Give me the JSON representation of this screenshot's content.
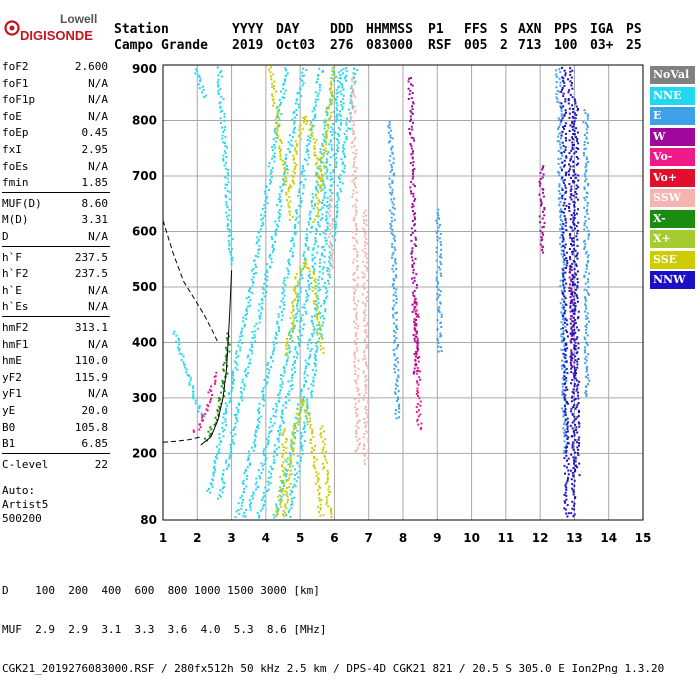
{
  "logo": {
    "line1": "Lowell",
    "line2": "DIGISONDE"
  },
  "header": {
    "labels": [
      "Station",
      "YYYY",
      "DAY",
      "DDD",
      "HHMMSS",
      "P1",
      "FFS",
      "S",
      "AXN",
      "PPS",
      "IGA",
      "PS"
    ],
    "values": [
      "Campo Grande",
      "2019",
      "Oct03",
      "276",
      "083000",
      "RSF",
      "005",
      "2",
      "713",
      "100",
      "03+",
      "25"
    ]
  },
  "params": [
    {
      "name": "foF2",
      "value": "2.600"
    },
    {
      "name": "foF1",
      "value": "N/A"
    },
    {
      "name": "foF1p",
      "value": "N/A"
    },
    {
      "name": "foE",
      "value": "N/A"
    },
    {
      "name": "foEp",
      "value": "0.45"
    },
    {
      "name": "fxI",
      "value": "2.95"
    },
    {
      "name": "foEs",
      "value": "N/A"
    },
    {
      "name": "fmin",
      "value": "1.85"
    },
    {
      "name": "MUF(D)",
      "value": "8.60"
    },
    {
      "name": "M(D)",
      "value": "3.31"
    },
    {
      "name": "D",
      "value": "N/A"
    },
    {
      "name": "h`F",
      "value": "237.5"
    },
    {
      "name": "h`F2",
      "value": "237.5"
    },
    {
      "name": "h`E",
      "value": "N/A"
    },
    {
      "name": "h`Es",
      "value": "N/A"
    },
    {
      "name": "hmF2",
      "value": "313.1"
    },
    {
      "name": "hmF1",
      "value": "N/A"
    },
    {
      "name": "hmE",
      "value": "110.0"
    },
    {
      "name": "yF2",
      "value": "115.9"
    },
    {
      "name": "yF1",
      "value": "N/A"
    },
    {
      "name": "yE",
      "value": "20.0"
    },
    {
      "name": "B0",
      "value": "105.8"
    },
    {
      "name": "B1",
      "value": "6.85"
    },
    {
      "name": "C-level",
      "value": "22"
    }
  ],
  "auto": {
    "line1": "Auto:",
    "line2": "Artist5",
    "line3": "500200"
  },
  "legend": [
    {
      "label": "NoVal",
      "color": "#808080"
    },
    {
      "label": "NNE",
      "color": "#22d8f0"
    },
    {
      "label": "E",
      "color": "#3ea0e8"
    },
    {
      "label": "W",
      "color": "#a0089c"
    },
    {
      "label": "Vo-",
      "color": "#f01a88"
    },
    {
      "label": "Vo+",
      "color": "#e0102c"
    },
    {
      "label": "SSW",
      "color": "#f4b4b0"
    },
    {
      "label": "X-",
      "color": "#1a8c10"
    },
    {
      "label": "X+",
      "color": "#a4cc30"
    },
    {
      "label": "SSE",
      "color": "#cccc00"
    },
    {
      "label": "NNW",
      "color": "#1c10c4"
    }
  ],
  "footer": {
    "line1": "D    100  200  400  600  800 1000 1500 3000 [km]",
    "line2": "MUF  2.9  2.9  3.1  3.3  3.6  4.0  5.3  8.6 [MHz]",
    "line3": "CGK21_2019276083000.RSF / 280fx512h 50 kHz 2.5 km / DPS-4D CGK21 821 / 20.5 S 305.0 E Ion2Png 1.3.20"
  },
  "chart_data": {
    "type": "scatter",
    "xlim": [
      1,
      15
    ],
    "ylim": [
      80,
      900
    ],
    "xticks": [
      1,
      2,
      3,
      4,
      5,
      6,
      7,
      8,
      9,
      10,
      11,
      12,
      13,
      14,
      15
    ],
    "yticks": [
      80,
      200,
      300,
      400,
      500,
      600,
      700,
      800,
      900
    ],
    "grid": true,
    "legend_position": "right",
    "series": [
      {
        "name": "NNE",
        "color": "#22d8f0",
        "traces": [
          {
            "x": [
              1.9,
              2.0,
              2.1,
              2.2
            ],
            "y": [
              900,
              880,
              860,
              840
            ]
          },
          {
            "x": [
              2.3,
              2.6,
              3.0,
              3.6,
              4.6
            ],
            "y": [
              130,
              210,
              330,
              520,
              900
            ]
          },
          {
            "x": [
              2.6,
              2.9,
              3.3,
              4.0,
              5.1
            ],
            "y": [
              120,
              200,
              320,
              520,
              900
            ]
          },
          {
            "x": [
              3.1,
              3.3,
              3.7,
              4.4,
              5.6
            ],
            "y": [
              80,
              130,
              250,
              450,
              900
            ]
          },
          {
            "x": [
              3.3,
              3.6,
              4.1,
              4.8,
              6.0
            ],
            "y": [
              80,
              120,
              240,
              440,
              900
            ]
          },
          {
            "x": [
              3.7,
              4.1,
              4.7,
              5.4,
              6.2
            ],
            "y": [
              80,
              160,
              330,
              560,
              900
            ]
          },
          {
            "x": [
              4.2,
              4.6,
              5.1,
              5.6,
              6.3
            ],
            "y": [
              80,
              170,
              330,
              540,
              900
            ]
          },
          {
            "x": [
              4.6,
              5.0,
              5.5,
              6.0,
              6.6
            ],
            "y": [
              80,
              210,
              400,
              620,
              900
            ]
          },
          {
            "x": [
              1.3,
              1.6,
              1.9,
              2.2
            ],
            "y": [
              420,
              360,
              300,
              260
            ]
          },
          {
            "x": [
              2.6,
              2.7,
              2.8,
              2.9,
              3.0
            ],
            "y": [
              900,
              820,
              720,
              620,
              540
            ]
          }
        ]
      },
      {
        "name": "SSE",
        "color": "#cccc00",
        "traces": [
          {
            "x": [
              4.5,
              4.8,
              5.05,
              5.3,
              5.6
            ],
            "y": [
              80,
              240,
              300,
              240,
              80
            ]
          },
          {
            "x": [
              4.6,
              4.9,
              5.1,
              5.35,
              5.6
            ],
            "y": [
              380,
              520,
              550,
              520,
              380
            ]
          },
          {
            "x": [
              4.7,
              4.95,
              5.1,
              5.35,
              5.6
            ],
            "y": [
              680,
              780,
              810,
              780,
              680
            ]
          },
          {
            "x": [
              4.1,
              4.4,
              4.75
            ],
            "y": [
              900,
              760,
              620
            ]
          },
          {
            "x": [
              5.4,
              5.7,
              6.0
            ],
            "y": [
              620,
              760,
              900
            ]
          },
          {
            "x": [
              4.3,
              4.45,
              4.55
            ],
            "y": [
              80,
              150,
              250
            ]
          },
          {
            "x": [
              5.6,
              5.75,
              5.85
            ],
            "y": [
              250,
              150,
              80
            ]
          }
        ]
      },
      {
        "name": "X-",
        "color": "#1a8c10",
        "traces": [
          {
            "x": [
              2.2,
              2.4,
              2.6,
              2.75,
              2.9
            ],
            "y": [
              225,
              245,
              280,
              330,
              420
            ]
          }
        ]
      },
      {
        "name": "Vo-",
        "color": "#f01a88",
        "traces": [
          {
            "x": [
              1.9,
              2.1,
              2.3,
              2.5
            ],
            "y": [
              240,
              255,
              290,
              350
            ]
          },
          {
            "x": [
              8.35,
              8.4,
              8.45
            ],
            "y": [
              480,
              360,
              240
            ]
          }
        ]
      },
      {
        "name": "SSW",
        "color": "#f4b4b0",
        "traces": [
          {
            "x": [
              6.5,
              6.55,
              6.6,
              6.65
            ],
            "y": [
              880,
              700,
              480,
              200
            ]
          },
          {
            "x": [
              6.85,
              6.9
            ],
            "y": [
              640,
              180
            ]
          },
          {
            "x": [
              5.85,
              5.9
            ],
            "y": [
              660,
              520
            ]
          }
        ]
      },
      {
        "name": "W",
        "color": "#a0089c",
        "traces": [
          {
            "x": [
              8.2,
              8.25,
              8.3,
              8.35
            ],
            "y": [
              880,
              700,
              520,
              340
            ]
          },
          {
            "x": [
              12.0,
              12.05
            ],
            "y": [
              720,
              560
            ]
          },
          {
            "x": [
              12.9,
              12.95
            ],
            "y": [
              540,
              340
            ]
          }
        ]
      },
      {
        "name": "E",
        "color": "#3ea0e8",
        "traces": [
          {
            "x": [
              7.6,
              7.7,
              7.8
            ],
            "y": [
              800,
              560,
              260
            ]
          },
          {
            "x": [
              9.0,
              9.05
            ],
            "y": [
              640,
              380
            ]
          },
          {
            "x": [
              12.5,
              12.6,
              12.7
            ],
            "y": [
              900,
              620,
              200
            ]
          },
          {
            "x": [
              13.3,
              13.35
            ],
            "y": [
              820,
              300
            ]
          }
        ]
      },
      {
        "name": "NNW",
        "color": "#1c10c4",
        "traces": [
          {
            "x": [
              12.65,
              12.7,
              12.75
            ],
            "y": [
              900,
              480,
              80
            ]
          },
          {
            "x": [
              12.85,
              12.9,
              12.95
            ],
            "y": [
              900,
              500,
              80
            ]
          },
          {
            "x": [
              13.0,
              13.05
            ],
            "y": [
              840,
              160
            ]
          }
        ]
      }
    ],
    "profile_curves": [
      {
        "style": "solid",
        "x": [
          2.1,
          2.4,
          2.6,
          2.75,
          2.85,
          2.9,
          2.95,
          3.0
        ],
        "y": [
          215,
          230,
          260,
          300,
          350,
          400,
          460,
          530
        ]
      },
      {
        "style": "dashed",
        "x": [
          1.0,
          1.3,
          1.6,
          1.9,
          2.2,
          2.45,
          2.6
        ],
        "y": [
          620,
          560,
          510,
          480,
          450,
          420,
          400
        ]
      },
      {
        "style": "dashed",
        "x": [
          1.0,
          1.4,
          1.8,
          2.1
        ],
        "y": [
          220,
          222,
          225,
          230
        ]
      }
    ]
  }
}
